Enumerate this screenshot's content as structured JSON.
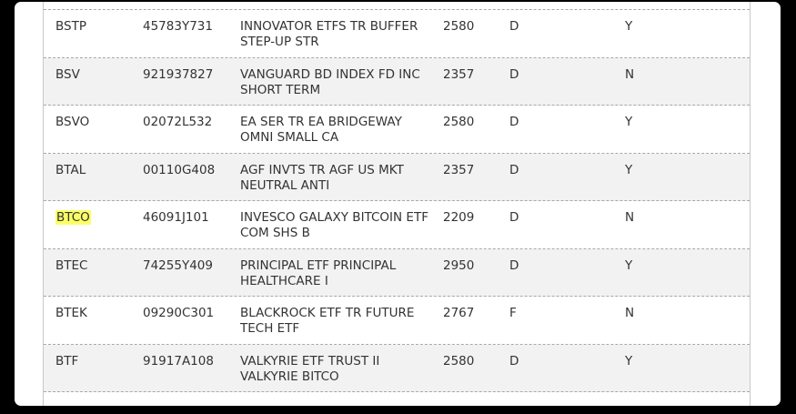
{
  "rows": [
    {
      "symbol": "BSTP",
      "cusip": "45783Y731",
      "name_line1": "INNOVATOR ETFS TR BUFFER",
      "name_line2": "STEP-UP STR",
      "code": "2580",
      "type": "D",
      "flag": "Y"
    },
    {
      "symbol": "BSV",
      "cusip": "921937827",
      "name_line1": "VANGUARD BD INDEX FD INC",
      "name_line2": "SHORT TERM",
      "code": "2357",
      "type": "D",
      "flag": "N"
    },
    {
      "symbol": "BSVO",
      "cusip": "02072L532",
      "name_line1": "EA SER TR EA BRIDGEWAY",
      "name_line2": "OMNI SMALL CA",
      "code": "2580",
      "type": "D",
      "flag": "Y"
    },
    {
      "symbol": "BTAL",
      "cusip": "00110G408",
      "name_line1": "AGF INVTS TR AGF US MKT",
      "name_line2": "NEUTRAL ANTI",
      "code": "2357",
      "type": "D",
      "flag": "Y"
    },
    {
      "symbol": "BTCO",
      "cusip": "46091J101",
      "name_line1": "INVESCO GALAXY BITCOIN ETF",
      "name_line2": "COM SHS B",
      "code": "2209",
      "type": "D",
      "flag": "N"
    },
    {
      "symbol": "BTEC",
      "cusip": "74255Y409",
      "name_line1": "PRINCIPAL ETF PRINCIPAL",
      "name_line2": "HEALTHCARE I",
      "code": "2950",
      "type": "D",
      "flag": "Y"
    },
    {
      "symbol": "BTEK",
      "cusip": "09290C301",
      "name_line1": "BLACKROCK ETF TR FUTURE",
      "name_line2": "TECH ETF",
      "code": "2767",
      "type": "F",
      "flag": "N"
    },
    {
      "symbol": "BTF",
      "cusip": "91917A108",
      "name_line1": "VALKYRIE ETF TRUST II",
      "name_line2": "VALKYRIE BITCO",
      "code": "2580",
      "type": "D",
      "flag": "Y"
    }
  ],
  "highlighted_symbol": "BTCO",
  "colors": {
    "highlight": "#fbff66",
    "row_alt": "#f2f2f2",
    "text": "#333333"
  }
}
